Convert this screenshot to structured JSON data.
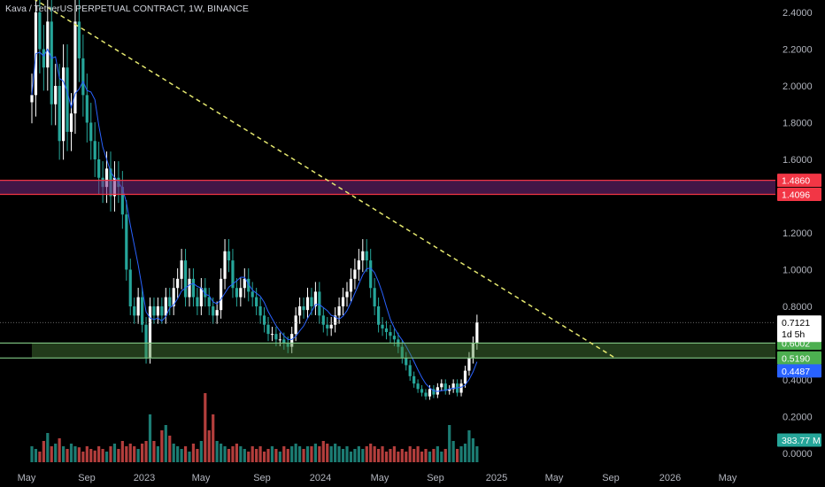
{
  "header": {
    "title": "Kava / TetherUS PERPETUAL CONTRACT, 1W, BINANCE"
  },
  "colors": {
    "background": "#000000",
    "up_candle": "#ffffff",
    "down_candle": "#26a69a",
    "ma_line": "#2962ff",
    "trendline": "#e5e86f",
    "red_zone": "#f23645",
    "green_zone": "#81c784",
    "volume_up": "#26a69a",
    "volume_down": "#ef5350"
  },
  "chart_data": {
    "type": "candlestick",
    "symbol": "Kava / TetherUS PERPETUAL CONTRACT",
    "interval": "1W",
    "exchange": "BINANCE",
    "x_tick_labels": [
      "May",
      "Sep",
      "2023",
      "May",
      "Sep",
      "2024",
      "May",
      "Sep",
      "2025",
      "May",
      "Sep",
      "2026",
      "May"
    ],
    "y_tick_labels": [
      "2.4000",
      "2.2000",
      "2.0000",
      "1.8000",
      "1.6000",
      "1.2000",
      "1.0000",
      "0.8000",
      "0.4000",
      "0.2000",
      "0.0000"
    ],
    "ylim": [
      0,
      2.45
    ],
    "current_price": "0.7121",
    "countdown": "1d 5h",
    "price_tags": [
      {
        "label": "1.4860",
        "value": 1.486,
        "color": "#f23645"
      },
      {
        "label": "1.4096",
        "value": 1.4096,
        "color": "#f23645"
      },
      {
        "label": "0.6002",
        "value": 0.6002,
        "color": "#4caf50"
      },
      {
        "label": "0.5190",
        "value": 0.519,
        "color": "#4caf50"
      },
      {
        "label": "0.4487",
        "value": 0.4487,
        "color": "#2962ff"
      }
    ],
    "volume_label": "383.77 M",
    "zones": [
      {
        "name": "resistance",
        "low": 1.4096,
        "high": 1.486,
        "color": "#f23645"
      },
      {
        "name": "support",
        "low": 0.519,
        "high": 0.6002,
        "color": "#81c784"
      }
    ],
    "trendline": {
      "start_week": -3,
      "start_price": 2.52,
      "end_week": 148,
      "end_price": 0.52
    },
    "candle_closes": [
      1.95,
      2.4,
      2.2,
      2.1,
      2.35,
      1.9,
      2.0,
      1.7,
      2.1,
      1.75,
      1.85,
      2.35,
      2.15,
      1.95,
      1.8,
      1.7,
      1.6,
      1.5,
      1.45,
      1.55,
      1.4,
      1.5,
      1.45,
      1.3,
      1.0,
      0.8,
      0.75,
      0.85,
      0.7,
      0.52,
      0.8,
      0.75,
      0.8,
      0.75,
      0.85,
      0.8,
      0.9,
      0.95,
      1.05,
      0.85,
      0.95,
      0.85,
      0.8,
      0.9,
      0.85,
      0.8,
      0.75,
      0.78,
      0.95,
      1.1,
      1.05,
      0.9,
      0.85,
      0.9,
      0.95,
      0.88,
      0.85,
      0.8,
      0.75,
      0.7,
      0.65,
      0.65,
      0.62,
      0.62,
      0.6,
      0.58,
      0.65,
      0.75,
      0.8,
      0.78,
      0.85,
      0.8,
      0.88,
      0.75,
      0.7,
      0.68,
      0.7,
      0.75,
      0.8,
      0.85,
      0.88,
      0.95,
      1.0,
      1.05,
      1.1,
      1.05,
      0.9,
      0.8,
      0.7,
      0.68,
      0.66,
      0.64,
      0.62,
      0.58,
      0.52,
      0.48,
      0.42,
      0.38,
      0.35,
      0.33,
      0.31,
      0.35,
      0.32,
      0.36,
      0.38,
      0.34,
      0.35,
      0.38,
      0.33,
      0.38,
      0.45,
      0.52,
      0.6,
      0.7121
    ],
    "volume": [
      0.3,
      0.25,
      0.2,
      0.4,
      0.55,
      0.3,
      0.35,
      0.45,
      0.3,
      0.25,
      0.35,
      0.3,
      0.28,
      0.2,
      0.3,
      0.25,
      0.22,
      0.3,
      0.25,
      0.2,
      0.3,
      0.35,
      0.25,
      0.4,
      0.3,
      0.35,
      0.3,
      0.25,
      0.35,
      0.4,
      0.9,
      0.4,
      0.3,
      0.6,
      0.7,
      0.5,
      0.35,
      0.3,
      0.25,
      0.3,
      0.2,
      0.35,
      0.25,
      0.4,
      1.3,
      0.6,
      0.9,
      0.4,
      0.35,
      0.3,
      0.25,
      0.3,
      0.35,
      0.3,
      0.25,
      0.2,
      0.3,
      0.25,
      0.3,
      0.2,
      0.25,
      0.3,
      0.25,
      0.2,
      0.3,
      0.25,
      0.3,
      0.35,
      0.3,
      0.25,
      0.3,
      0.3,
      0.35,
      0.3,
      0.4,
      0.35,
      0.3,
      0.35,
      0.3,
      0.25,
      0.3,
      0.2,
      0.25,
      0.3,
      0.25,
      0.3,
      0.35,
      0.3,
      0.25,
      0.3,
      0.2,
      0.25,
      0.3,
      0.2,
      0.25,
      0.2,
      0.3,
      0.25,
      0.3,
      0.2,
      0.25,
      0.2,
      0.25,
      0.3,
      0.2,
      0.25,
      0.7,
      0.4,
      0.25,
      0.3,
      0.35,
      0.6,
      0.45,
      0.3
    ]
  }
}
